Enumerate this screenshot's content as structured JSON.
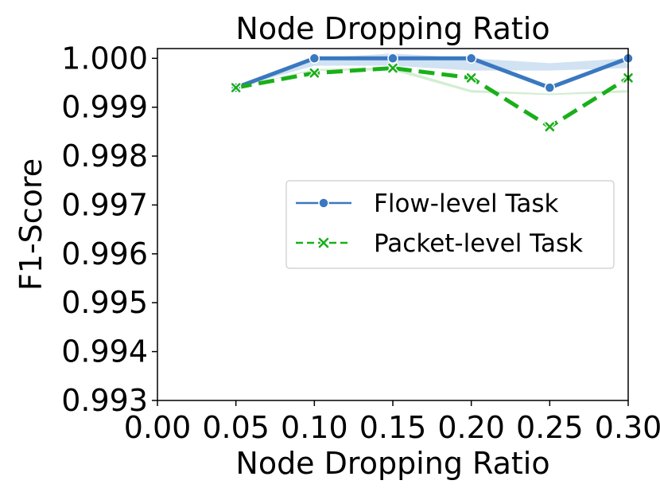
{
  "chart_data": {
    "type": "line",
    "title": "Node Dropping Ratio",
    "xlabel": "Node Dropping Ratio",
    "ylabel": "F1-Score",
    "xlim": [
      0.0,
      0.3
    ],
    "ylim": [
      0.993,
      1.0002
    ],
    "xticks": [
      0.0,
      0.05,
      0.1,
      0.15,
      0.2,
      0.25,
      0.3
    ],
    "xtick_labels": [
      "0.00",
      "0.05",
      "0.10",
      "0.15",
      "0.20",
      "0.25",
      "0.30"
    ],
    "yticks": [
      0.993,
      0.994,
      0.995,
      0.996,
      0.997,
      0.998,
      0.999,
      1.0
    ],
    "ytick_labels": [
      "0.993",
      "0.994",
      "0.995",
      "0.996",
      "0.997",
      "0.998",
      "0.999",
      "1.000"
    ],
    "grid": false,
    "legend_position": "center-right",
    "x": [
      0.05,
      0.1,
      0.15,
      0.2,
      0.25,
      0.3
    ],
    "series": [
      {
        "name": "Flow-level Task",
        "values": [
          0.9994,
          1.0,
          1.0,
          1.0,
          0.9994,
          1.0
        ],
        "band_low": [
          0.9994,
          0.99985,
          0.99985,
          0.99975,
          0.99975,
          0.9998
        ],
        "band_high": [
          0.9994,
          1.0,
          1.0001,
          1.0,
          0.9999,
          1.0
        ],
        "color": "#3a78c0",
        "band_color": "#c6dbef",
        "marker": "circle",
        "linestyle": "solid"
      },
      {
        "name": "Packet-level Task",
        "values": [
          0.9994,
          0.9997,
          0.9998,
          0.9996,
          0.9986,
          0.9996
        ],
        "band_low": [
          0.9994,
          0.99975,
          0.99975,
          0.9993,
          0.99925,
          0.9993
        ],
        "band_high": [
          0.9994,
          0.99978,
          0.99982,
          0.99935,
          0.99928,
          0.99935
        ],
        "color": "#1aaf1a",
        "band_color": "#c7eac7",
        "marker": "x",
        "linestyle": "dashed"
      }
    ]
  }
}
